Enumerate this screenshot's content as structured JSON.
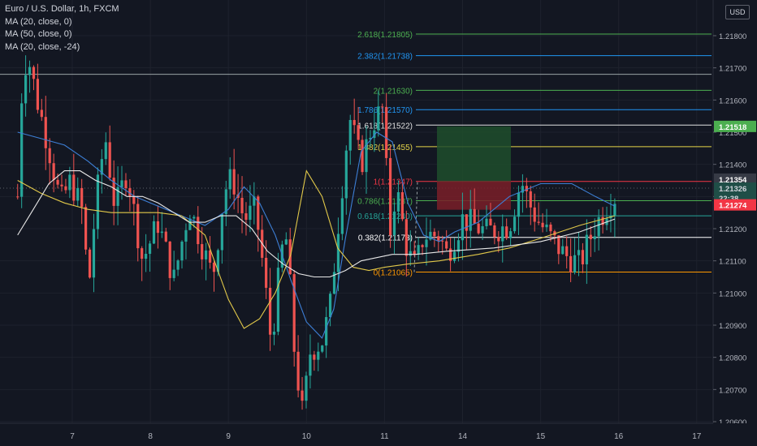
{
  "legend": {
    "symbol": "Euro / U.S. Dollar, 1h, FXCM",
    "ma_lines": [
      "MA (20, close, 0)",
      "MA (50, close, 0)",
      "MA (20, close, -24)"
    ]
  },
  "currency_badge": "USD",
  "colors": {
    "background": "#131722",
    "up_candle": "#26a69a",
    "down_candle": "#ef5350",
    "ma20": "#3d7fd6",
    "ma50": "#e2c94a",
    "ma20_shift": "#e8e8e8",
    "text": "#d1d4dc"
  },
  "chart_data": {
    "type": "candlestick",
    "x_ticks": [
      "7",
      "8",
      "9",
      "10",
      "11",
      "14",
      "15",
      "16",
      "17"
    ],
    "y_ticks": [
      "1.21800",
      "1.21700",
      "1.21600",
      "1.21500",
      "1.21400",
      "1.21300",
      "1.21200",
      "1.21100",
      "1.21000",
      "1.20900",
      "1.20800",
      "1.20700",
      "1.20600"
    ],
    "ylim": [
      1.2059,
      1.2189
    ],
    "price_tags": [
      {
        "label": "1.21518",
        "value": 1.21518,
        "bg": "#4caf50",
        "fg": "#ffffff"
      },
      {
        "label": "1.21354",
        "value": 1.21354,
        "bg": "#363a45",
        "fg": "#ffffff"
      },
      {
        "label": "1.21326",
        "value": 1.21326,
        "bg": "#1f4e47",
        "fg": "#d1d4dc"
      },
      {
        "label": "22:38",
        "value": 1.21296,
        "bg": "#1f4e47",
        "fg": "#d1d4dc"
      },
      {
        "label": "1.21274",
        "value": 1.21274,
        "bg": "#f23645",
        "fg": "#ffffff"
      }
    ],
    "fib_levels": [
      {
        "label": "2.618(1.21805)",
        "value": 1.21805,
        "color": "#4caf50"
      },
      {
        "label": "2.382(1.21738)",
        "value": 1.21738,
        "color": "#2196f3"
      },
      {
        "label": "2(1.21630)",
        "value": 1.2163,
        "color": "#4caf50"
      },
      {
        "label": "1.786(1.21570)",
        "value": 1.2157,
        "color": "#2196f3"
      },
      {
        "label": "1.618(1.21522)",
        "value": 1.21522,
        "color": "#e0e0e0"
      },
      {
        "label": "1.382(1.21455)",
        "value": 1.21455,
        "color": "#e5d44a"
      },
      {
        "label": "1(1.21347)",
        "value": 1.21347,
        "color": "#f23645"
      },
      {
        "label": "0.786(1.21287)",
        "value": 1.21287,
        "color": "#4caf50"
      },
      {
        "label": "0.618(1.21240)",
        "value": 1.2124,
        "color": "#26a69a"
      },
      {
        "label": "0.382(1.21173)",
        "value": 1.21173,
        "color": "#ffffff"
      },
      {
        "label": "0(1.21065)",
        "value": 1.21065,
        "color": "#ff9800"
      }
    ],
    "horizontal_line": {
      "value": 1.2168
    },
    "position_box": {
      "entry": 1.21347,
      "target": 1.21518,
      "stop": 1.21274,
      "x_start": 13.72,
      "x_end": 14.66
    },
    "candles_day_range": [
      6.3,
      13.95
    ],
    "moving_averages": [
      {
        "name": "MA (20, close, 0)",
        "color": "#3d7fd6",
        "points": [
          [
            6.3,
            1.215
          ],
          [
            6.6,
            1.2148
          ],
          [
            6.9,
            1.2146
          ],
          [
            7.2,
            1.2141
          ],
          [
            7.5,
            1.2135
          ],
          [
            7.8,
            1.213
          ],
          [
            8.1,
            1.2127
          ],
          [
            8.4,
            1.2124
          ],
          [
            8.7,
            1.2121
          ],
          [
            9.0,
            1.2126
          ],
          [
            9.2,
            1.2133
          ],
          [
            9.4,
            1.2128
          ],
          [
            9.6,
            1.2118
          ],
          [
            9.8,
            1.2104
          ],
          [
            10.0,
            1.2091
          ],
          [
            10.2,
            1.2086
          ],
          [
            10.35,
            1.2095
          ],
          [
            10.5,
            1.2117
          ],
          [
            10.7,
            1.2144
          ],
          [
            10.9,
            1.215
          ],
          [
            11.1,
            1.2147
          ],
          [
            11.3,
            1.2128
          ],
          [
            11.5,
            1.2118
          ],
          [
            11.7,
            1.2116
          ],
          [
            11.9,
            1.2119
          ],
          [
            12.2,
            1.2122
          ],
          [
            12.6,
            1.213
          ],
          [
            13.0,
            1.2134
          ],
          [
            13.4,
            1.2134
          ],
          [
            13.7,
            1.213
          ],
          [
            13.95,
            1.2127
          ]
        ]
      },
      {
        "name": "MA (50, close, 0)",
        "color": "#e2c94a",
        "points": [
          [
            6.3,
            1.2135
          ],
          [
            6.6,
            1.2131
          ],
          [
            6.9,
            1.2128
          ],
          [
            7.2,
            1.2126
          ],
          [
            7.5,
            1.2125
          ],
          [
            7.8,
            1.2125
          ],
          [
            8.1,
            1.2125
          ],
          [
            8.4,
            1.2124
          ],
          [
            8.7,
            1.2118
          ],
          [
            9.0,
            1.2098
          ],
          [
            9.2,
            1.2089
          ],
          [
            9.4,
            1.2092
          ],
          [
            9.6,
            1.21
          ],
          [
            9.8,
            1.2112
          ],
          [
            10.0,
            1.2138
          ],
          [
            10.2,
            1.213
          ],
          [
            10.4,
            1.2114
          ],
          [
            10.6,
            1.2108
          ],
          [
            10.8,
            1.2107
          ],
          [
            11.0,
            1.2108
          ],
          [
            11.3,
            1.2109
          ],
          [
            11.7,
            1.211
          ],
          [
            12.2,
            1.2112
          ],
          [
            12.6,
            1.2114
          ],
          [
            13.0,
            1.2117
          ],
          [
            13.5,
            1.2121
          ],
          [
            13.95,
            1.2124
          ]
        ]
      },
      {
        "name": "MA (20, close, -24)",
        "color": "#e8e8e8",
        "points": [
          [
            6.3,
            1.2118
          ],
          [
            6.5,
            1.2126
          ],
          [
            6.7,
            1.2134
          ],
          [
            6.9,
            1.2138
          ],
          [
            7.1,
            1.2138
          ],
          [
            7.3,
            1.2135
          ],
          [
            7.5,
            1.2133
          ],
          [
            7.7,
            1.213
          ],
          [
            7.9,
            1.213
          ],
          [
            8.1,
            1.2128
          ],
          [
            8.3,
            1.2125
          ],
          [
            8.5,
            1.2122
          ],
          [
            8.7,
            1.2122
          ],
          [
            8.9,
            1.2124
          ],
          [
            9.1,
            1.2124
          ],
          [
            9.3,
            1.212
          ],
          [
            9.5,
            1.2113
          ],
          [
            9.7,
            1.2109
          ],
          [
            9.9,
            1.2106
          ],
          [
            10.1,
            1.2105
          ],
          [
            10.3,
            1.2105
          ],
          [
            10.5,
            1.2107
          ],
          [
            10.7,
            1.211
          ],
          [
            10.9,
            1.2111
          ],
          [
            11.1,
            1.2112
          ],
          [
            11.4,
            1.2112
          ],
          [
            11.8,
            1.2113
          ],
          [
            12.4,
            1.2114
          ],
          [
            13.0,
            1.2116
          ],
          [
            13.5,
            1.2119
          ],
          [
            13.95,
            1.2123
          ]
        ]
      }
    ]
  }
}
